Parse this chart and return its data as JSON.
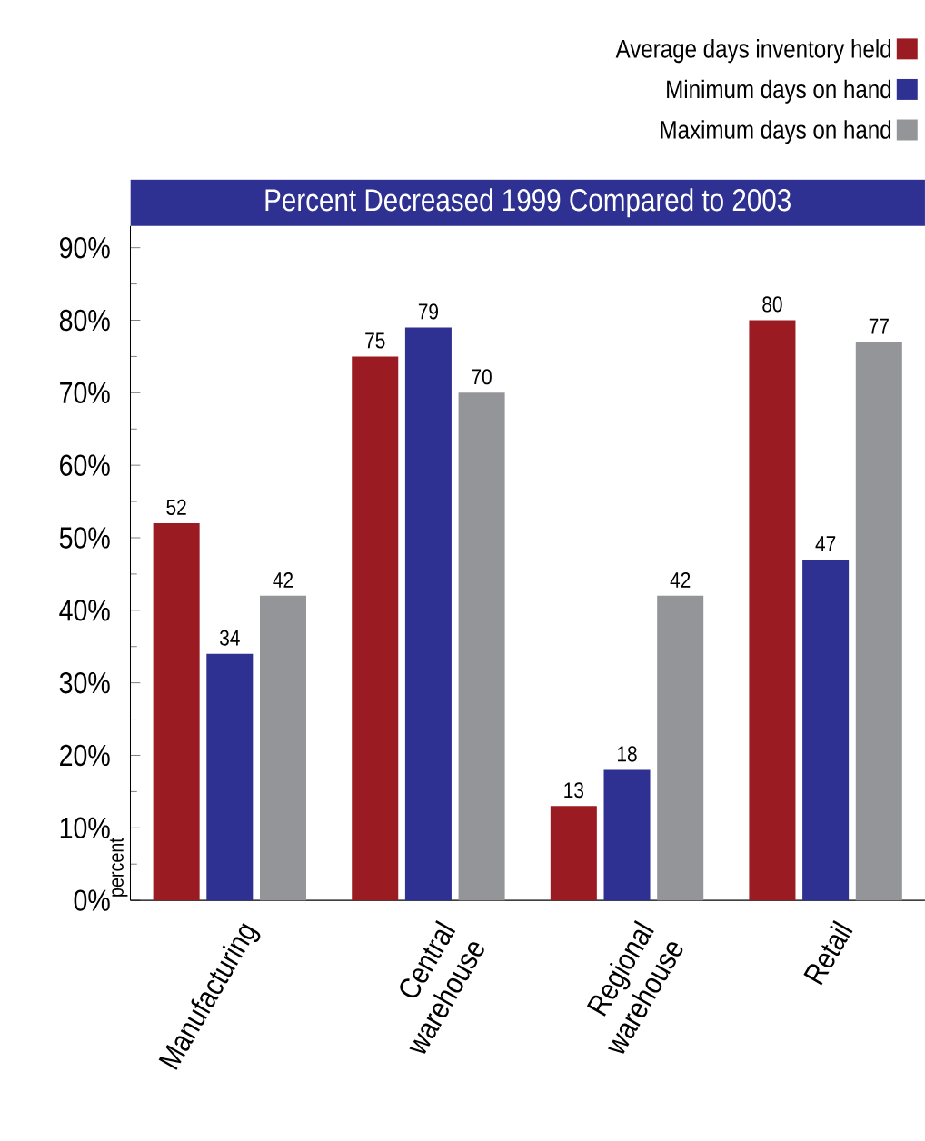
{
  "chart_data": {
    "type": "bar",
    "title": "Percent Decreased 1999 Compared to 2003",
    "ylabel": "percent",
    "categories": [
      "Manufacturing",
      "Central warehouse",
      "Regional warehouse",
      "Retail"
    ],
    "series": [
      {
        "name": "Average days inventory held",
        "color": "#9b1b22",
        "values": [
          52,
          75,
          13,
          80
        ]
      },
      {
        "name": "Minimum days on hand",
        "color": "#2e3192",
        "values": [
          34,
          79,
          18,
          47
        ]
      },
      {
        "name": "Maximum days on hand",
        "color": "#949599",
        "values": [
          42,
          70,
          42,
          77
        ]
      }
    ],
    "ylim": [
      0,
      93
    ],
    "yticks": [
      {
        "value": 0,
        "label": "0%"
      },
      {
        "value": 10,
        "label": "10%"
      },
      {
        "value": 20,
        "label": "20%"
      },
      {
        "value": 30,
        "label": "30%"
      },
      {
        "value": 40,
        "label": "40%"
      },
      {
        "value": 50,
        "label": "50%"
      },
      {
        "value": 60,
        "label": "60%"
      },
      {
        "value": 70,
        "label": "70%"
      },
      {
        "value": 80,
        "label": "80%"
      },
      {
        "value": 90,
        "label": "90%"
      }
    ],
    "data_labels": true,
    "legend": "top right",
    "grid": false
  }
}
